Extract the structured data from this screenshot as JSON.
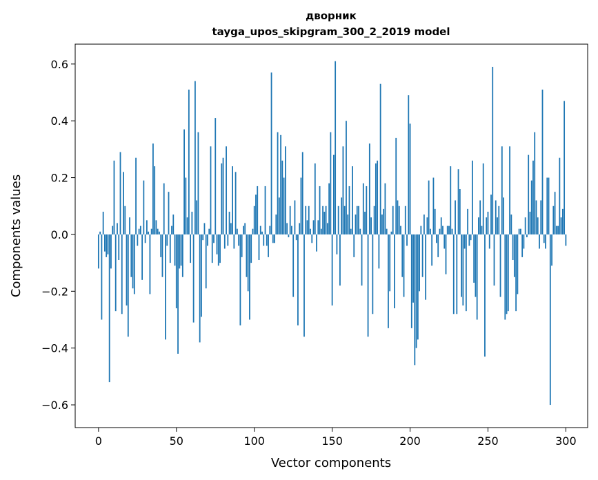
{
  "chart_data": {
    "type": "bar",
    "title_lines": [
      "дворник",
      "tayga_upos_skipgram_300_2_2019 model"
    ],
    "xlabel": "Vector components",
    "ylabel": "Components values",
    "xlim": [
      -15,
      314
    ],
    "ylim": [
      -0.68,
      0.67
    ],
    "xticks": [
      0,
      50,
      100,
      150,
      200,
      250,
      300
    ],
    "xtick_labels": [
      "0",
      "50",
      "100",
      "150",
      "200",
      "250",
      "300"
    ],
    "yticks": [
      -0.6,
      -0.4,
      -0.2,
      0.0,
      0.2,
      0.4,
      0.6
    ],
    "ytick_labels": [
      "−0.6",
      "−0.4",
      "−0.2",
      "0.0",
      "0.2",
      "0.4",
      "0.6"
    ],
    "grid": false,
    "bar_color": "#1f77b4",
    "values": [
      -0.12,
      0.01,
      -0.3,
      0.08,
      -0.06,
      -0.08,
      -0.07,
      -0.52,
      -0.12,
      0.03,
      0.26,
      -0.27,
      0.04,
      -0.09,
      0.29,
      -0.28,
      0.22,
      0.1,
      -0.25,
      -0.36,
      0.06,
      -0.15,
      -0.19,
      -0.21,
      0.27,
      -0.04,
      0.02,
      0.03,
      -0.16,
      0.19,
      -0.03,
      0.05,
      0.01,
      -0.21,
      0.02,
      0.32,
      0.24,
      0.05,
      0.02,
      0.01,
      -0.08,
      -0.15,
      0.18,
      -0.37,
      -0.04,
      0.15,
      -0.1,
      0.03,
      0.07,
      -0.11,
      -0.26,
      -0.42,
      -0.12,
      -0.11,
      -0.15,
      0.37,
      0.2,
      0.06,
      0.51,
      -0.1,
      0.08,
      -0.31,
      0.54,
      0.12,
      0.36,
      -0.38,
      -0.29,
      -0.02,
      0.04,
      -0.19,
      -0.04,
      0.02,
      0.31,
      -0.1,
      -0.03,
      0.41,
      -0.07,
      -0.11,
      -0.1,
      0.25,
      0.27,
      -0.05,
      0.31,
      -0.04,
      0.08,
      0.04,
      0.24,
      -0.05,
      0.22,
      0.02,
      -0.04,
      -0.32,
      -0.08,
      0.03,
      0.04,
      -0.15,
      -0.2,
      -0.3,
      -0.1,
      0.02,
      0.1,
      0.14,
      0.17,
      -0.09,
      0.03,
      0.01,
      -0.04,
      0.17,
      -0.04,
      -0.08,
      0.03,
      0.57,
      -0.03,
      -0.03,
      0.07,
      0.36,
      0.13,
      0.35,
      0.26,
      0.2,
      0.31,
      0.04,
      -0.01,
      0.1,
      0.03,
      -0.22,
      0.12,
      -0.02,
      -0.32,
      0.04,
      0.2,
      0.29,
      -0.36,
      0.1,
      0.05,
      0.1,
      0.02,
      -0.03,
      0.05,
      0.25,
      -0.06,
      0.05,
      0.17,
      0.02,
      0.1,
      0.08,
      0.1,
      0.04,
      0.18,
      0.36,
      -0.25,
      0.28,
      0.61,
      -0.07,
      0.1,
      -0.18,
      0.13,
      0.31,
      0.1,
      0.4,
      0.07,
      0.17,
      0.02,
      0.24,
      -0.08,
      0.07,
      0.1,
      0.1,
      0.02,
      -0.18,
      0.18,
      0.08,
      0.17,
      -0.36,
      0.32,
      0.06,
      -0.28,
      0.1,
      0.25,
      0.26,
      -0.12,
      0.53,
      0.07,
      0.09,
      0.18,
      0.02,
      -0.33,
      -0.2,
      0.01,
      0.1,
      -0.26,
      0.34,
      0.12,
      0.1,
      0.03,
      -0.15,
      -0.22,
      0.1,
      -0.04,
      0.49,
      0.39,
      -0.33,
      -0.24,
      -0.46,
      -0.4,
      -0.37,
      -0.2,
      0.03,
      -0.15,
      0.07,
      -0.23,
      0.06,
      0.19,
      0.02,
      -0.11,
      0.2,
      0.09,
      -0.03,
      -0.08,
      0.02,
      0.06,
      0.03,
      -0.05,
      -0.14,
      0.03,
      0.03,
      0.24,
      0.02,
      -0.28,
      0.12,
      -0.28,
      0.23,
      0.16,
      -0.22,
      -0.25,
      -0.05,
      -0.27,
      0.09,
      -0.04,
      -0.02,
      0.26,
      -0.17,
      -0.22,
      -0.3,
      0.06,
      0.12,
      0.03,
      0.25,
      -0.43,
      0.06,
      0.08,
      -0.05,
      0.14,
      0.59,
      -0.18,
      0.12,
      0.06,
      0.1,
      -0.22,
      0.31,
      0.13,
      -0.3,
      -0.28,
      -0.27,
      0.31,
      0.07,
      -0.09,
      -0.15,
      -0.27,
      -0.21,
      0.02,
      0.02,
      -0.08,
      -0.05,
      0.06,
      -0.01,
      0.28,
      0.08,
      0.19,
      0.26,
      0.36,
      0.12,
      0.06,
      -0.05,
      0.12,
      0.51,
      -0.03,
      -0.05,
      0.2,
      0.2,
      -0.6,
      -0.11,
      0.1,
      0.15,
      0.03,
      0.03,
      0.27,
      0.06,
      0.09,
      0.47,
      -0.04
    ]
  }
}
